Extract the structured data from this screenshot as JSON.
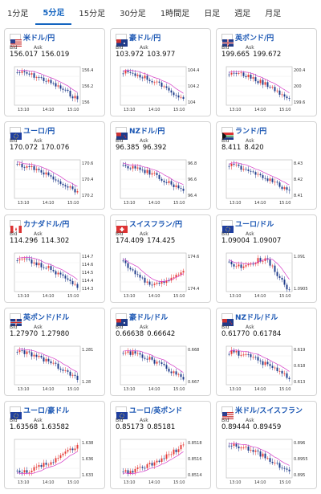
{
  "tabs": [
    {
      "label": "1分足",
      "active": false
    },
    {
      "label": "5分足",
      "active": true
    },
    {
      "label": "15分足",
      "active": false
    },
    {
      "label": "30分足",
      "active": false
    },
    {
      "label": "1時間足",
      "active": false
    },
    {
      "label": "日足",
      "active": false
    },
    {
      "label": "週足",
      "active": false
    },
    {
      "label": "月足",
      "active": false
    }
  ],
  "bid_label": "Bid",
  "ask_label": "Ask",
  "colors": {
    "up": "#e53935",
    "down": "#1e3a8a",
    "ma": "#d63cc7",
    "pair": "#1a56b3"
  },
  "cards": [
    {
      "pair": "米ドル/円",
      "flag": "us-flag",
      "bid": "156.017",
      "ask": "156.019",
      "trend": "down",
      "y_ticks": [
        "156.4",
        "156.2",
        "156"
      ],
      "x_ticks": [
        "13:10",
        "14:10",
        "15:10"
      ]
    },
    {
      "pair": "豪ドル/円",
      "flag": "au-flag",
      "bid": "103.972",
      "ask": "103.977",
      "trend": "down",
      "y_ticks": [
        "104.4",
        "104.2",
        "104"
      ],
      "x_ticks": [
        "13:10",
        "14:10",
        "15:10"
      ]
    },
    {
      "pair": "英ポンド/円",
      "flag": "gb-flag",
      "bid": "199.665",
      "ask": "199.672",
      "trend": "down",
      "y_ticks": [
        "200.4",
        "200",
        "199.6"
      ],
      "x_ticks": [
        "13:10",
        "14:10",
        "15:10"
      ]
    },
    {
      "pair": "ユーロ/円",
      "flag": "eu-flag",
      "bid": "170.072",
      "ask": "170.076",
      "trend": "down",
      "y_ticks": [
        "170.6",
        "170.4",
        "170.2"
      ],
      "x_ticks": [
        "13:10",
        "14:10",
        "15:10"
      ]
    },
    {
      "pair": "NZドル/円",
      "flag": "nz-flag",
      "bid": "96.385",
      "ask": "96.392",
      "trend": "down",
      "y_ticks": [
        "96.8",
        "96.6",
        "96.4"
      ],
      "x_ticks": [
        "13:10",
        "14:10",
        "15:10"
      ]
    },
    {
      "pair": "ランド/円",
      "flag": "za-flag",
      "bid": "8.411",
      "ask": "8.420",
      "trend": "down",
      "y_ticks": [
        "8.43",
        "8.42",
        "8.41"
      ],
      "x_ticks": [
        "13:10",
        "14:10",
        "15:10"
      ]
    },
    {
      "pair": "カナダドル/円",
      "flag": "ca-flag",
      "bid": "114.296",
      "ask": "114.302",
      "trend": "down",
      "y_ticks": [
        "114.7",
        "114.6",
        "114.5",
        "114.4",
        "114.3"
      ],
      "x_ticks": [
        "13:10",
        "14:10",
        "15:10"
      ]
    },
    {
      "pair": "スイスフラン/円",
      "flag": "ch-flag",
      "bid": "174.409",
      "ask": "174.425",
      "trend": "downup",
      "y_ticks": [
        "174.6",
        "174.4"
      ],
      "x_ticks": [
        "13:10",
        "14:10",
        "15:10"
      ]
    },
    {
      "pair": "ユーロ/ドル",
      "flag": "eu-flag",
      "bid": "1.09004",
      "ask": "1.09007",
      "trend": "flatdown",
      "y_ticks": [
        "1.091",
        "1.0905"
      ],
      "x_ticks": [
        "13:10",
        "14:10",
        "15:10"
      ]
    },
    {
      "pair": "英ポンド/ドル",
      "flag": "gb-flag",
      "bid": "1.27970",
      "ask": "1.27980",
      "trend": "down",
      "y_ticks": [
        "1.281",
        "1.28"
      ],
      "x_ticks": [
        "13:10",
        "14:10",
        "15:10"
      ]
    },
    {
      "pair": "豪ドル/ドル",
      "flag": "au-flag",
      "bid": "0.66638",
      "ask": "0.66642",
      "trend": "down",
      "y_ticks": [
        "0.668",
        "0.667"
      ],
      "x_ticks": [
        "13:10",
        "14:10",
        "15:10"
      ]
    },
    {
      "pair": "NZドル/ドル",
      "flag": "nz-flag",
      "bid": "0.61770",
      "ask": "0.61784",
      "trend": "down",
      "y_ticks": [
        "0.619",
        "0.618",
        "0.613"
      ],
      "x_ticks": [
        "13:10",
        "14:10",
        "15:10"
      ]
    },
    {
      "pair": "ユーロ/豪ドル",
      "flag": "eu-flag",
      "bid": "1.63568",
      "ask": "1.63582",
      "trend": "up",
      "y_ticks": [
        "1.638",
        "1.636",
        "1.633"
      ],
      "x_ticks": [
        "13:10",
        "14:10",
        "15:10"
      ]
    },
    {
      "pair": "ユーロ/英ポンド",
      "flag": "eu-flag",
      "bid": "0.85173",
      "ask": "0.85181",
      "trend": "up",
      "y_ticks": [
        "0.8518",
        "0.8516",
        "0.8514"
      ],
      "x_ticks": [
        "13:10",
        "14:10",
        "15:10"
      ]
    },
    {
      "pair": "米ドル/スイスフラン",
      "flag": "us-flag",
      "bid": "0.89444",
      "ask": "0.89459",
      "trend": "down",
      "y_ticks": [
        "0.896",
        "0.8955",
        "0.895"
      ],
      "x_ticks": [
        "13:10",
        "14:10",
        "15:10"
      ]
    }
  ]
}
